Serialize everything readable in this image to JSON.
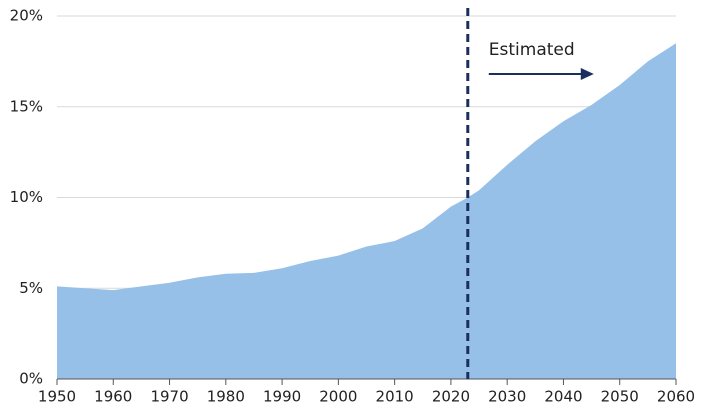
{
  "chart_data": {
    "type": "area",
    "x": [
      1950,
      1955,
      1960,
      1965,
      1970,
      1975,
      1980,
      1985,
      1990,
      1995,
      2000,
      2005,
      2010,
      2015,
      2020,
      2023,
      2025,
      2030,
      2035,
      2040,
      2045,
      2050,
      2055,
      2060
    ],
    "values": [
      5.1,
      5.0,
      4.9,
      5.1,
      5.3,
      5.6,
      5.8,
      5.85,
      6.1,
      6.5,
      6.8,
      7.3,
      7.6,
      8.3,
      9.5,
      10.0,
      10.4,
      11.8,
      13.1,
      14.2,
      15.1,
      16.2,
      17.5,
      18.5
    ],
    "color": "#97c0e8",
    "xlim": [
      1950,
      2060
    ],
    "xticks": [
      1950,
      1960,
      1970,
      1980,
      1990,
      2000,
      2010,
      2020,
      2030,
      2040,
      2050,
      2060
    ],
    "ylim": [
      0,
      20
    ],
    "yticks": [
      {
        "value": 0,
        "label": "0%"
      },
      {
        "value": 5,
        "label": "5%"
      },
      {
        "value": 10,
        "label": "10%"
      },
      {
        "value": 15,
        "label": "15%"
      },
      {
        "value": 20,
        "label": "20%"
      }
    ],
    "grid": true,
    "estimate_start": 2023,
    "estimate_color": "#1b2f5e",
    "annotation": "Estimated"
  }
}
